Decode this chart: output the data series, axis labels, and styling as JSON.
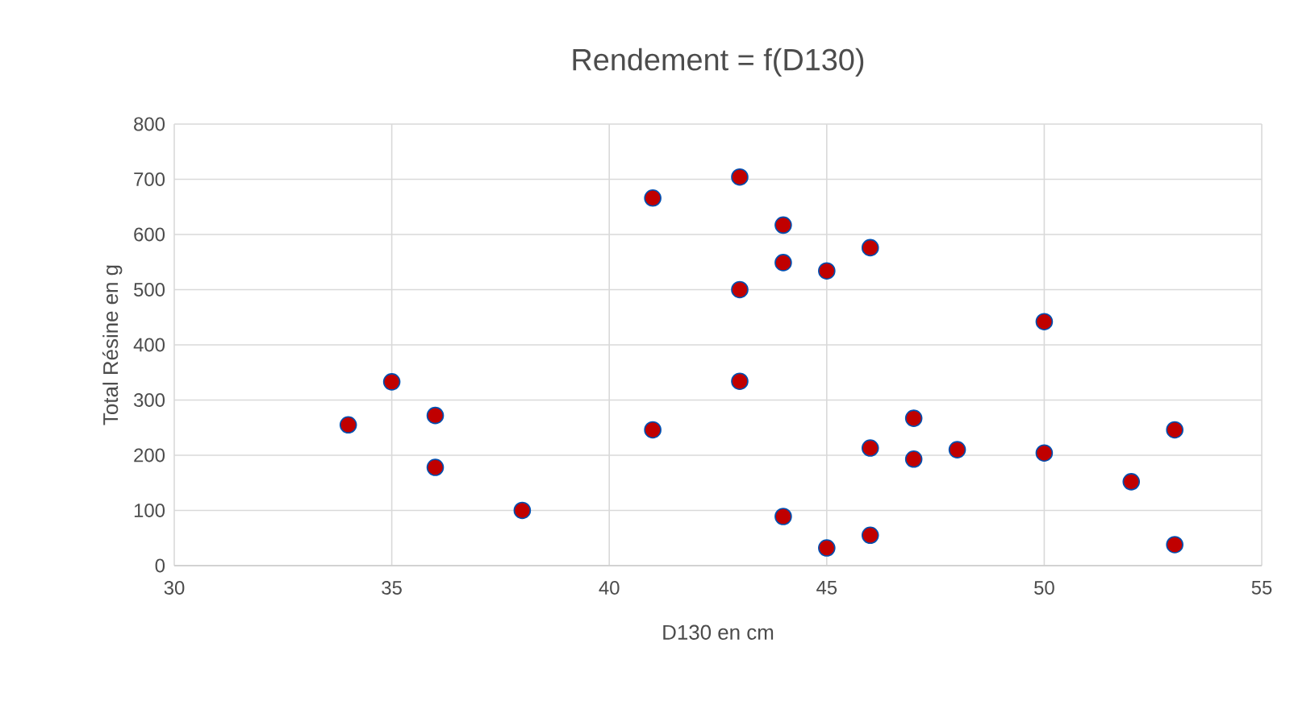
{
  "chart_data": {
    "type": "scatter",
    "title": "Rendement = f(D130)",
    "xlabel": "D130 en cm",
    "ylabel": "Total Résine en g",
    "xlim": [
      30,
      55
    ],
    "xticks": [
      30,
      35,
      40,
      45,
      50,
      55
    ],
    "ylim": [
      0,
      800
    ],
    "yticks": [
      0,
      100,
      200,
      300,
      400,
      500,
      600,
      700,
      800
    ],
    "grid": true,
    "marker": "circle",
    "series": [
      {
        "color": "#c00000",
        "x": [
          34,
          35,
          36,
          36,
          38,
          41,
          41,
          43,
          43,
          43,
          44,
          44,
          44,
          45,
          45,
          46,
          46,
          46,
          47,
          47,
          48,
          50,
          50,
          52,
          53,
          53
        ],
        "values": [
          255,
          333,
          272,
          178,
          100,
          666,
          246,
          704,
          500,
          334,
          617,
          549,
          89,
          534,
          32,
          576,
          213,
          55,
          267,
          193,
          210,
          442,
          204,
          152,
          246,
          38
        ]
      }
    ]
  }
}
